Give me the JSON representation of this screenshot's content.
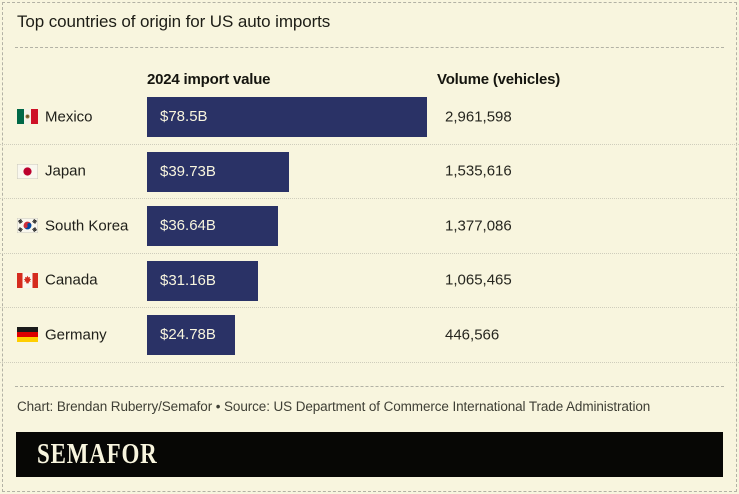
{
  "title": "Top countries of origin for US auto imports",
  "columns": {
    "value_header": "2024 import value",
    "volume_header": "Volume (vehicles)"
  },
  "rows": [
    {
      "country": "Mexico",
      "flag": "mx",
      "flag_icon": "mexico-flag-icon",
      "value_label": "$78.5B",
      "value_billions": 78.5,
      "volume": "2,961,598"
    },
    {
      "country": "Japan",
      "flag": "jp",
      "flag_icon": "japan-flag-icon",
      "value_label": "$39.73B",
      "value_billions": 39.73,
      "volume": "1,535,616"
    },
    {
      "country": "South Korea",
      "flag": "kr",
      "flag_icon": "south-korea-flag-icon",
      "value_label": "$36.64B",
      "value_billions": 36.64,
      "volume": "1,377,086"
    },
    {
      "country": "Canada",
      "flag": "ca",
      "flag_icon": "canada-flag-icon",
      "value_label": "$31.16B",
      "value_billions": 31.16,
      "volume": "1,065,465"
    },
    {
      "country": "Germany",
      "flag": "de",
      "flag_icon": "germany-flag-icon",
      "value_label": "$24.78B",
      "value_billions": 24.78,
      "volume": "446,566"
    }
  ],
  "footer": {
    "credit": "Chart: Brendan Ruberry/Semafor  • Source: US Department of Commerce International Trade Administration"
  },
  "brand": {
    "logo_text": "SEMAFOR"
  },
  "colors": {
    "background": "#f8f5de",
    "bar": "#2a3266",
    "bar_text": "#f8f5de",
    "logo_background": "#070705",
    "logo_text": "#f8f5de",
    "divider": "#b3b2a5",
    "row_separator": "#cfcdbc"
  },
  "chart_data": {
    "type": "bar",
    "orientation": "horizontal",
    "title": "Top countries of origin for US auto imports",
    "categories": [
      "Mexico",
      "Japan",
      "South Korea",
      "Canada",
      "Germany"
    ],
    "series": [
      {
        "name": "2024 import value ($B)",
        "values": [
          78.5,
          39.73,
          36.64,
          31.16,
          24.78
        ],
        "labels": [
          "$78.5B",
          "$39.73B",
          "$36.64B",
          "$31.16B",
          "$24.78B"
        ]
      },
      {
        "name": "Volume (vehicles)",
        "values": [
          2961598,
          1535616,
          1377086,
          1065465,
          446566
        ],
        "labels": [
          "2,961,598",
          "1,535,616",
          "1,377,086",
          "1,065,465",
          "446,566"
        ]
      }
    ],
    "xlim": [
      0,
      78.5
    ],
    "grid": false,
    "legend_position": "none",
    "bar_color": "#2a3266",
    "credit": "Chart: Brendan Ruberry/Semafor",
    "source": "US Department of Commerce International Trade Administration"
  }
}
